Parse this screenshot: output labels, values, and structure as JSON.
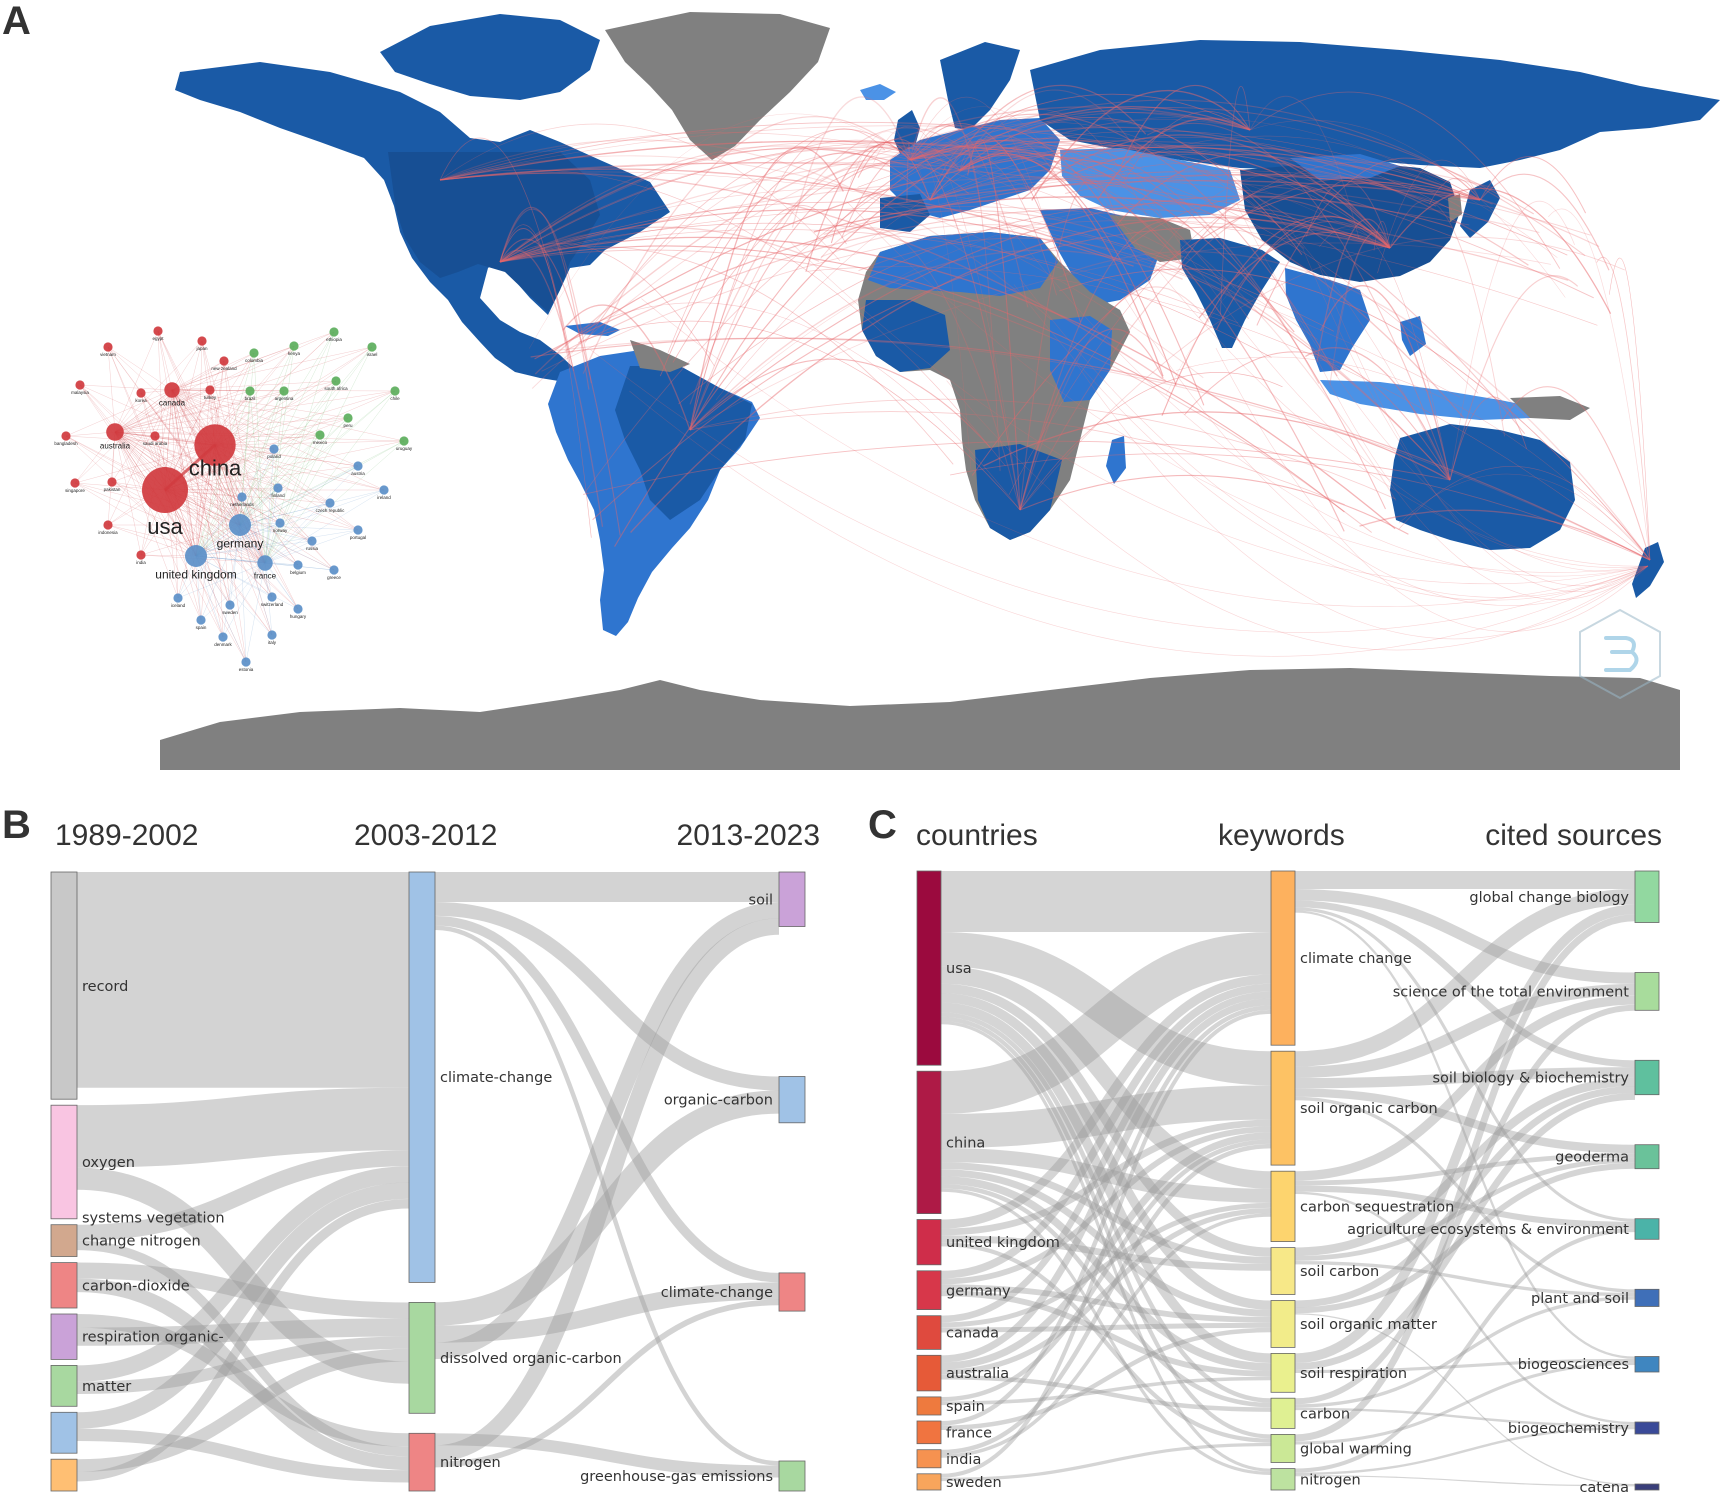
{
  "panel_labels": {
    "a": "A",
    "b": "B",
    "c": "C"
  },
  "colors": {
    "land_dark": "#1a5aa6",
    "land_mid": "#2f75cf",
    "land_light": "#4b92e6",
    "no_data": "#808080",
    "collab_line": "#e8676b",
    "flow": "#c9c9c9"
  },
  "chart_data": [
    {
      "type": "map",
      "panel": "A",
      "description_layer": "country collaboration map",
      "collab_hubs": [
        "usa",
        "china",
        "united kingdom",
        "germany",
        "france",
        "australia",
        "canada",
        "japan",
        "brazil",
        "new zealand",
        "south africa",
        "russia"
      ]
    },
    {
      "type": "network",
      "panel": "A-inset",
      "clusters": {
        "red": "#d03a3e",
        "blue": "#5b8fc8",
        "green": "#5cae5c"
      },
      "nodes": [
        {
          "label": "usa",
          "cluster": "red",
          "weight": 10
        },
        {
          "label": "china",
          "cluster": "red",
          "weight": 9
        },
        {
          "label": "germany",
          "cluster": "blue",
          "weight": 5
        },
        {
          "label": "united kingdom",
          "cluster": "blue",
          "weight": 5
        },
        {
          "label": "australia",
          "cluster": "red",
          "weight": 4
        },
        {
          "label": "canada",
          "cluster": "red",
          "weight": 3.5
        },
        {
          "label": "france",
          "cluster": "blue",
          "weight": 3.5
        },
        {
          "label": "vietnam",
          "cluster": "red",
          "weight": 1.5
        },
        {
          "label": "egypt",
          "cluster": "red",
          "weight": 1.5
        },
        {
          "label": "japan",
          "cluster": "red",
          "weight": 1.5
        },
        {
          "label": "new zealand",
          "cluster": "red",
          "weight": 1.5
        },
        {
          "label": "malaysia",
          "cluster": "red",
          "weight": 1.5
        },
        {
          "label": "korea",
          "cluster": "red",
          "weight": 1.5
        },
        {
          "label": "turkey",
          "cluster": "red",
          "weight": 1.5
        },
        {
          "label": "bangladesh",
          "cluster": "red",
          "weight": 1.5
        },
        {
          "label": "saudi arabia",
          "cluster": "red",
          "weight": 1.5
        },
        {
          "label": "singapore",
          "cluster": "red",
          "weight": 1.5
        },
        {
          "label": "pakistan",
          "cluster": "red",
          "weight": 1.5
        },
        {
          "label": "indonesia",
          "cluster": "red",
          "weight": 1.5
        },
        {
          "label": "india",
          "cluster": "red",
          "weight": 1.5
        },
        {
          "label": "colombia",
          "cluster": "green",
          "weight": 1.5
        },
        {
          "label": "kenya",
          "cluster": "green",
          "weight": 1.5
        },
        {
          "label": "ethiopia",
          "cluster": "green",
          "weight": 1.5
        },
        {
          "label": "israel",
          "cluster": "green",
          "weight": 1.5
        },
        {
          "label": "brazil",
          "cluster": "green",
          "weight": 1.5
        },
        {
          "label": "argentina",
          "cluster": "green",
          "weight": 1.5
        },
        {
          "label": "south africa",
          "cluster": "green",
          "weight": 1.5
        },
        {
          "label": "chile",
          "cluster": "green",
          "weight": 1.5
        },
        {
          "label": "peru",
          "cluster": "green",
          "weight": 1.5
        },
        {
          "label": "mexico",
          "cluster": "green",
          "weight": 1.5
        },
        {
          "label": "uruguay",
          "cluster": "green",
          "weight": 1.5
        },
        {
          "label": "poland",
          "cluster": "blue",
          "weight": 1.5
        },
        {
          "label": "austria",
          "cluster": "blue",
          "weight": 1.5
        },
        {
          "label": "finland",
          "cluster": "blue",
          "weight": 1.5
        },
        {
          "label": "ireland",
          "cluster": "blue",
          "weight": 1.5
        },
        {
          "label": "czech republic",
          "cluster": "blue",
          "weight": 1.5
        },
        {
          "label": "netherlands",
          "cluster": "blue",
          "weight": 1.5
        },
        {
          "label": "norway",
          "cluster": "blue",
          "weight": 1.5
        },
        {
          "label": "portugal",
          "cluster": "blue",
          "weight": 1.5
        },
        {
          "label": "russia",
          "cluster": "blue",
          "weight": 1.5
        },
        {
          "label": "belgium",
          "cluster": "blue",
          "weight": 1.5
        },
        {
          "label": "greece",
          "cluster": "blue",
          "weight": 1.5
        },
        {
          "label": "iceland",
          "cluster": "blue",
          "weight": 1.5
        },
        {
          "label": "sweden",
          "cluster": "blue",
          "weight": 1.5
        },
        {
          "label": "switzerland",
          "cluster": "blue",
          "weight": 1.5
        },
        {
          "label": "hungary",
          "cluster": "blue",
          "weight": 1.5
        },
        {
          "label": "spain",
          "cluster": "blue",
          "weight": 1.5
        },
        {
          "label": "denmark",
          "cluster": "blue",
          "weight": 1.5
        },
        {
          "label": "italy",
          "cluster": "blue",
          "weight": 1.5
        },
        {
          "label": "estonia",
          "cluster": "blue",
          "weight": 1.5
        }
      ]
    },
    {
      "type": "sankey",
      "panel": "B",
      "columns": [
        "1989-2002",
        "2003-2012",
        "2013-2023"
      ],
      "nodes": [
        {
          "id": "b0",
          "col": 0,
          "label": "record",
          "value": 20,
          "color": "#c8c8c8"
        },
        {
          "id": "b1",
          "col": 0,
          "label": "oxygen",
          "value": 10,
          "color": "#f9c5e2"
        },
        {
          "id": "b2",
          "col": 0,
          "label": "systems vegetation",
          "value": 0,
          "color": "#f9c5e2"
        },
        {
          "id": "b3",
          "col": 0,
          "label": "change nitrogen",
          "value": 2.8,
          "color": "#d2a88e"
        },
        {
          "id": "b4",
          "col": 0,
          "label": "carbon-dioxide",
          "value": 4,
          "color": "#ee8585"
        },
        {
          "id": "b5",
          "col": 0,
          "label": "respiration organic-",
          "value": 4,
          "color": "#caa2d8"
        },
        {
          "id": "b6",
          "col": 0,
          "label": "matter",
          "value": 3.6,
          "color": "#a8d8a0"
        },
        {
          "id": "b7",
          "col": 0,
          "label": "",
          "value": 3.6,
          "color": "#a0c2e6"
        },
        {
          "id": "b8",
          "col": 0,
          "label": "",
          "value": 2.8,
          "color": "#ffbf73"
        },
        {
          "id": "m0",
          "col": 1,
          "label": "climate-change",
          "value": 37,
          "color": "#a0c2e6"
        },
        {
          "id": "m1",
          "col": 1,
          "label": "dissolved organic-carbon",
          "value": 10,
          "color": "#a8d8a0"
        },
        {
          "id": "m2",
          "col": 1,
          "label": "nitrogen",
          "value": 5.2,
          "color": "#ee8585"
        },
        {
          "id": "r0",
          "col": 2,
          "label": "soil",
          "value": 4,
          "color": "#caa2d8"
        },
        {
          "id": "r1",
          "col": 2,
          "label": "organic-carbon",
          "value": 3.4,
          "color": "#a0c2e6"
        },
        {
          "id": "r2",
          "col": 2,
          "label": "climate-change",
          "value": 2.8,
          "color": "#ee8585"
        },
        {
          "id": "r3",
          "col": 2,
          "label": "greenhouse-gas emissions",
          "value": 2.2,
          "color": "#a8d8a0"
        }
      ]
    },
    {
      "type": "sankey",
      "panel": "C",
      "columns": [
        "countries",
        "keywords",
        "cited sources"
      ],
      "nodes": [
        {
          "id": "c0",
          "col": 0,
          "label": "usa",
          "value": 30,
          "color": "#9b0a3e"
        },
        {
          "id": "c1",
          "col": 0,
          "label": "china",
          "value": 22,
          "color": "#ae1a46"
        },
        {
          "id": "c2",
          "col": 0,
          "label": "united kingdom",
          "value": 7,
          "color": "#cf2d4a"
        },
        {
          "id": "c3",
          "col": 0,
          "label": "germany",
          "value": 6,
          "color": "#d7374a"
        },
        {
          "id": "c4",
          "col": 0,
          "label": "canada",
          "value": 5.2,
          "color": "#df4a3e"
        },
        {
          "id": "c5",
          "col": 0,
          "label": "australia",
          "value": 5.5,
          "color": "#e65a38"
        },
        {
          "id": "c6",
          "col": 0,
          "label": "spain",
          "value": 2.8,
          "color": "#ee7a3e"
        },
        {
          "id": "c7",
          "col": 0,
          "label": "france",
          "value": 3.5,
          "color": "#f07440"
        },
        {
          "id": "c8",
          "col": 0,
          "label": "india",
          "value": 2.8,
          "color": "#f69250"
        },
        {
          "id": "c9",
          "col": 0,
          "label": "sweden",
          "value": 2.5,
          "color": "#f8a55c"
        },
        {
          "id": "k0",
          "col": 1,
          "label": "climate change",
          "value": 26,
          "color": "#fdb15e"
        },
        {
          "id": "k1",
          "col": 1,
          "label": "soil organic carbon",
          "value": 17,
          "color": "#fdc264"
        },
        {
          "id": "k2",
          "col": 1,
          "label": "carbon sequestration",
          "value": 10.5,
          "color": "#fdd46e"
        },
        {
          "id": "k3",
          "col": 1,
          "label": "soil carbon",
          "value": 7,
          "color": "#f7e888"
        },
        {
          "id": "k4",
          "col": 1,
          "label": "soil organic matter",
          "value": 7,
          "color": "#f2ec8a"
        },
        {
          "id": "k5",
          "col": 1,
          "label": "soil respiration",
          "value": 5.8,
          "color": "#eaf08e"
        },
        {
          "id": "k6",
          "col": 1,
          "label": "carbon",
          "value": 4.5,
          "color": "#dff093"
        },
        {
          "id": "k7",
          "col": 1,
          "label": "global warming",
          "value": 4.2,
          "color": "#cbe896"
        },
        {
          "id": "k8",
          "col": 1,
          "label": "nitrogen",
          "value": 3.2,
          "color": "#bde2a0"
        },
        {
          "id": "s0",
          "col": 2,
          "label": "global change biology",
          "value": 3,
          "color": "#92d8a0"
        },
        {
          "id": "s1",
          "col": 2,
          "label": "science of the total environment",
          "value": 2.2,
          "color": "#a8dc9c"
        },
        {
          "id": "s2",
          "col": 2,
          "label": "soil biology & biochemistry",
          "value": 2,
          "color": "#5fc09e"
        },
        {
          "id": "s3",
          "col": 2,
          "label": "geoderma",
          "value": 1.4,
          "color": "#6ac29a"
        },
        {
          "id": "s4",
          "col": 2,
          "label": "agriculture ecosystems & environment",
          "value": 1.2,
          "color": "#4bb3a8"
        },
        {
          "id": "s5",
          "col": 2,
          "label": "plant and soil",
          "value": 1,
          "color": "#3f6fb8"
        },
        {
          "id": "s6",
          "col": 2,
          "label": "biogeosciences",
          "value": 0.9,
          "color": "#3f86c0"
        },
        {
          "id": "s7",
          "col": 2,
          "label": "biogeochemistry",
          "value": 0.7,
          "color": "#3a4a98"
        },
        {
          "id": "s8",
          "col": 2,
          "label": "catena",
          "value": 0.35,
          "color": "#3a3f7a"
        }
      ]
    }
  ]
}
